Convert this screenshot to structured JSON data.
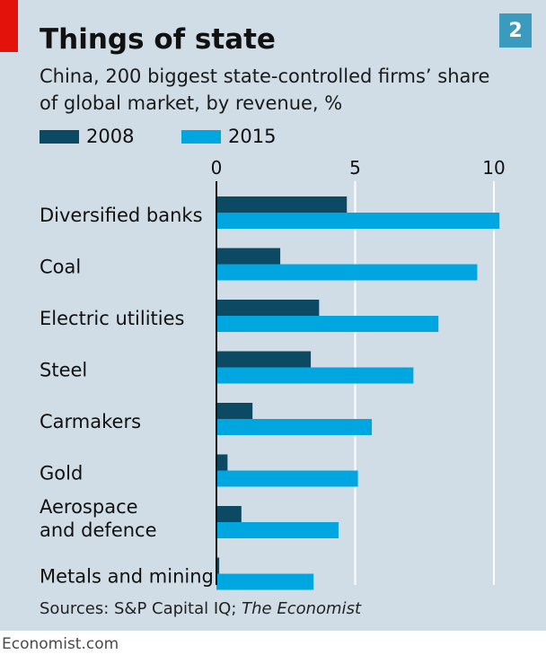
{
  "header": {
    "title": "Things of state",
    "badge": "2",
    "subtitle_line1": "China, 200 biggest state-controlled firms’ share",
    "subtitle_line2": "of global market, by revenue, %"
  },
  "legend": [
    {
      "label": "2008",
      "color": "#0b4a62"
    },
    {
      "label": "2015",
      "color": "#00a6e0"
    }
  ],
  "chart_data": {
    "type": "bar",
    "orientation": "horizontal",
    "categories": [
      "Diversified banks",
      "Coal",
      "Electric utilities",
      "Steel",
      "Carmakers",
      "Gold",
      "Aerospace\nand defence",
      "Metals and mining"
    ],
    "series": [
      {
        "name": "2008",
        "color": "#0b4a62",
        "values": [
          4.7,
          2.3,
          3.7,
          3.4,
          1.3,
          0.4,
          0.9,
          0.1
        ]
      },
      {
        "name": "2015",
        "color": "#00a6e0",
        "values": [
          10.2,
          9.4,
          8.0,
          7.1,
          5.6,
          5.1,
          4.4,
          3.5
        ]
      }
    ],
    "xlim": [
      0,
      11.5
    ],
    "x_ticks": [
      0,
      5,
      10
    ],
    "grid": true,
    "legend_position": "top-left"
  },
  "source": {
    "prefix": "Sources: S&P Capital IQ; ",
    "italic": "The Economist"
  },
  "footer": "Economist.com"
}
